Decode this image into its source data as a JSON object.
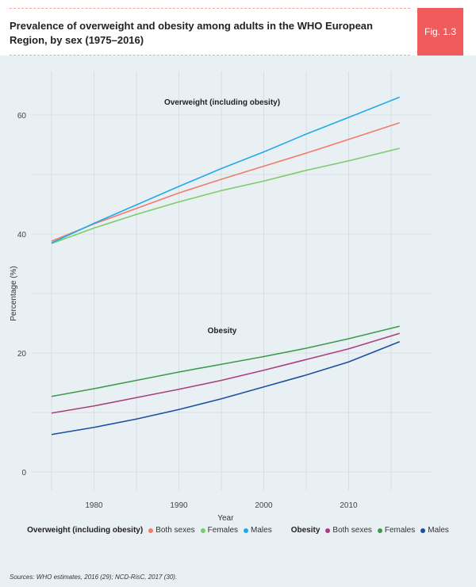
{
  "header": {
    "title": "Prevalence of overweight and obesity among adults in the WHO European Region, by sex (1975–2016)",
    "fig_label": "Fig. 1.3"
  },
  "chart_data": {
    "type": "line",
    "xlabel": "Year",
    "ylabel": "Percentage (%)",
    "xlim": [
      1975,
      2016
    ],
    "ylim": [
      0,
      65
    ],
    "xticks": [
      1980,
      1990,
      2000,
      2010
    ],
    "yticks": [
      0,
      20,
      40,
      60
    ],
    "grid": true,
    "legend_position": "bottom",
    "annotations": [
      "Overweight (including obesity)",
      "Obesity"
    ],
    "x": [
      1975,
      1980,
      1985,
      1990,
      1995,
      2000,
      2005,
      2010,
      2016
    ],
    "groups": [
      {
        "name": "Overweight (including obesity)",
        "series": [
          {
            "name": "Both sexes",
            "color": "#f27b6b",
            "values": [
              38.8,
              41.7,
              44.3,
              46.9,
              49.2,
              51.4,
              53.6,
              55.9,
              58.7
            ]
          },
          {
            "name": "Females",
            "color": "#7dcb6a",
            "values": [
              38.4,
              41.0,
              43.3,
              45.4,
              47.3,
              48.9,
              50.7,
              52.3,
              54.4
            ]
          },
          {
            "name": "Males",
            "color": "#22a9ea",
            "values": [
              38.5,
              41.8,
              44.9,
              48.0,
              51.0,
              53.8,
              56.8,
              59.6,
              63.0
            ]
          }
        ]
      },
      {
        "name": "Obesity",
        "series": [
          {
            "name": "Both sexes",
            "color": "#a8407f",
            "values": [
              9.9,
              11.1,
              12.5,
              13.9,
              15.4,
              17.1,
              18.9,
              20.7,
              23.3
            ]
          },
          {
            "name": "Females",
            "color": "#3e9a4a",
            "values": [
              12.7,
              14.0,
              15.4,
              16.8,
              18.1,
              19.4,
              20.8,
              22.4,
              24.5
            ]
          },
          {
            "name": "Males",
            "color": "#1c4fa0",
            "values": [
              6.3,
              7.5,
              8.9,
              10.5,
              12.3,
              14.3,
              16.3,
              18.5,
              21.9
            ]
          }
        ]
      }
    ]
  },
  "source": "Sources: WHO estimates, 2016 (29); NCD-RisC, 2017 (30)."
}
